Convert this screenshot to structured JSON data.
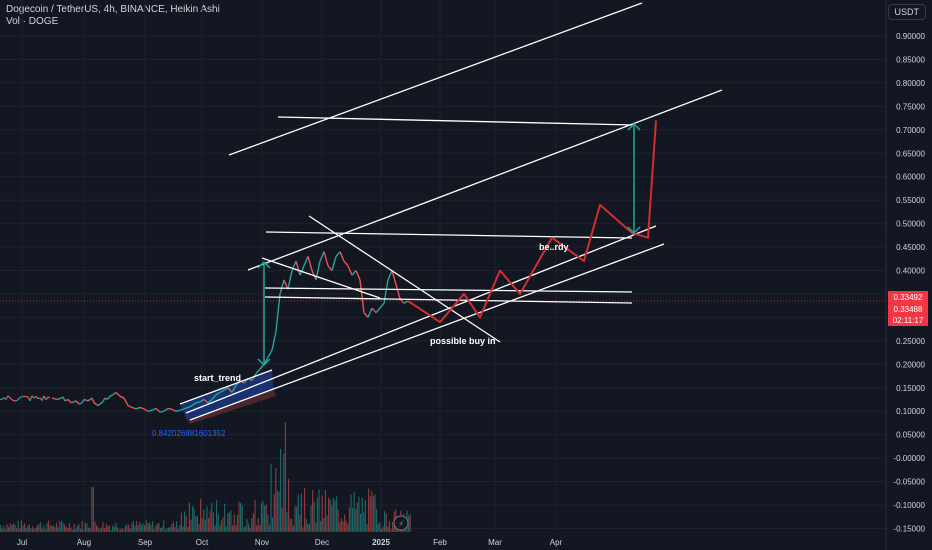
{
  "header": {
    "title": "Dogecoin / TetherUS, 4h, BINANCE, Heikin Ashi",
    "volume_label": "Vol · DOGE",
    "currency": "USDT"
  },
  "colors": {
    "background": "#131722",
    "grid": "#1e222d",
    "up": "#26a69a",
    "down": "#ef5350",
    "projection": "#d32f2f",
    "channel": "#ffffff",
    "blue_zone": "#2962ff",
    "badge_red": "#f23645",
    "green_arrow": "#26a69a"
  },
  "chart_data": {
    "type": "line",
    "ylim": [
      -0.15,
      0.97
    ],
    "y_ticks": [
      "0.90000",
      "0.85000",
      "0.80000",
      "0.75000",
      "0.70000",
      "0.65000",
      "0.60000",
      "0.55000",
      "0.50000",
      "0.45000",
      "0.40000",
      "0.35000",
      "0.30000",
      "0.25000",
      "0.20000",
      "0.15000",
      "0.10000",
      "0.05000",
      "-0.00000",
      "-0.05000",
      "-0.10000",
      "-0.15000"
    ],
    "x_ticks": [
      "Jul",
      "Aug",
      "Sep",
      "Oct",
      "Nov",
      "Dec",
      "2025",
      "Feb",
      "Mar",
      "Apr"
    ],
    "price_badges": [
      "0.33492",
      "0.33488",
      "02:11:17"
    ],
    "annotations": {
      "start_trend": "start_trend",
      "be_rdy": "be..rdy",
      "possible_buy_in": "possible buy in",
      "fib_value": "0.842026881601352"
    },
    "price_path": [
      [
        0.13,
        0.128
      ],
      [
        0.138,
        0.126
      ],
      [
        0.142,
        0.125
      ],
      [
        0.15,
        0.127
      ],
      [
        0.158,
        0.13
      ],
      [
        0.162,
        0.122
      ],
      [
        0.17,
        0.125
      ],
      [
        0.178,
        0.118
      ],
      [
        0.185,
        0.12
      ],
      [
        0.19,
        0.122
      ],
      [
        0.198,
        0.115
      ],
      [
        0.205,
        0.118
      ],
      [
        0.21,
        0.125
      ],
      [
        0.22,
        0.122
      ],
      [
        0.23,
        0.128
      ],
      [
        0.235,
        0.118
      ],
      [
        0.245,
        0.112
      ],
      [
        0.25,
        0.115
      ],
      [
        0.258,
        0.121
      ],
      [
        0.262,
        0.128
      ],
      [
        0.268,
        0.125
      ],
      [
        0.275,
        0.132
      ],
      [
        0.282,
        0.135
      ],
      [
        0.29,
        0.14
      ],
      [
        0.3,
        0.132
      ],
      [
        0.31,
        0.128
      ],
      [
        0.32,
        0.112
      ],
      [
        0.33,
        0.108
      ],
      [
        0.34,
        0.105
      ],
      [
        0.35,
        0.108
      ],
      [
        0.36,
        0.105
      ],
      [
        0.37,
        0.1
      ],
      [
        0.38,
        0.102
      ],
      [
        0.39,
        0.106
      ],
      [
        0.4,
        0.098
      ],
      [
        0.41,
        0.1
      ],
      [
        0.42,
        0.106
      ],
      [
        0.43,
        0.104
      ],
      [
        0.44,
        0.1
      ],
      [
        0.45,
        0.102
      ],
      [
        0.46,
        0.105
      ],
      [
        0.47,
        0.108
      ],
      [
        0.48,
        0.112
      ],
      [
        0.49,
        0.118
      ],
      [
        0.5,
        0.12
      ],
      [
        0.51,
        0.125
      ],
      [
        0.52,
        0.118
      ],
      [
        0.53,
        0.125
      ],
      [
        0.54,
        0.135
      ],
      [
        0.55,
        0.14
      ],
      [
        0.56,
        0.145
      ],
      [
        0.57,
        0.15
      ],
      [
        0.58,
        0.14
      ],
      [
        0.59,
        0.155
      ],
      [
        0.6,
        0.165
      ],
      [
        0.61,
        0.16
      ],
      [
        0.62,
        0.17
      ],
      [
        0.63,
        0.165
      ],
      [
        0.64,
        0.18
      ],
      [
        0.65,
        0.19
      ],
      [
        0.66,
        0.2
      ],
      [
        0.67,
        0.215
      ],
      [
        0.68,
        0.23
      ],
      [
        0.69,
        0.27
      ],
      [
        0.7,
        0.35
      ],
      [
        0.71,
        0.38
      ],
      [
        0.72,
        0.36
      ],
      [
        0.73,
        0.4
      ],
      [
        0.74,
        0.42
      ],
      [
        0.75,
        0.39
      ],
      [
        0.76,
        0.41
      ],
      [
        0.77,
        0.43
      ],
      [
        0.78,
        0.4
      ],
      [
        0.79,
        0.38
      ],
      [
        0.8,
        0.42
      ],
      [
        0.81,
        0.44
      ],
      [
        0.82,
        0.41
      ],
      [
        0.83,
        0.4
      ],
      [
        0.84,
        0.43
      ],
      [
        0.85,
        0.44
      ],
      [
        0.86,
        0.42
      ],
      [
        0.87,
        0.41
      ],
      [
        0.88,
        0.39
      ],
      [
        0.89,
        0.4
      ],
      [
        0.9,
        0.38
      ],
      [
        0.91,
        0.31
      ],
      [
        0.92,
        0.3
      ],
      [
        0.93,
        0.32
      ],
      [
        0.94,
        0.31
      ],
      [
        0.95,
        0.32
      ],
      [
        0.96,
        0.33
      ],
      [
        0.97,
        0.38
      ],
      [
        0.98,
        0.4
      ],
      [
        0.99,
        0.37
      ],
      [
        1.0,
        0.34
      ],
      [
        1.01,
        0.33
      ],
      [
        1.02,
        0.335
      ]
    ],
    "projection_path": [
      [
        1.02,
        0.335
      ],
      [
        1.1,
        0.29
      ],
      [
        1.16,
        0.35
      ],
      [
        1.2,
        0.3
      ],
      [
        1.25,
        0.4
      ],
      [
        1.3,
        0.35
      ],
      [
        1.38,
        0.47
      ],
      [
        1.46,
        0.42
      ],
      [
        1.5,
        0.54
      ],
      [
        1.58,
        0.48
      ],
      [
        1.62,
        0.47
      ],
      [
        1.64,
        0.72
      ]
    ]
  }
}
